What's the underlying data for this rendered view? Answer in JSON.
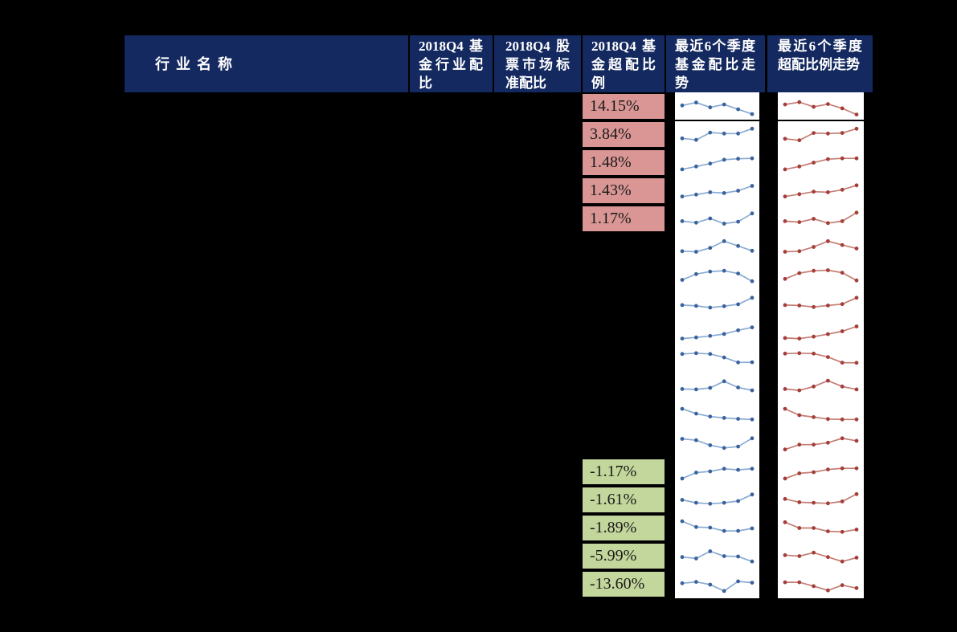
{
  "colors": {
    "background": "#000000",
    "header_bg": "#14295f",
    "header_text": "#ffffff",
    "overweight_positive_fill": "#d99694",
    "overweight_negative_fill": "#c3d69b",
    "fund_trend_line": "#8aabd3",
    "fund_trend_marker": "#3a639c",
    "over_trend_line": "#c47d75",
    "over_trend_marker": "#a43e38",
    "cell_text": "#1a1a1a",
    "sparkline_bg": "#ffffff"
  },
  "chart_data": {
    "type": "table",
    "columns": [
      "行业名称",
      "2018Q4 基金行业配比",
      "2018Q4 股票市场标准配比",
      "2018Q4 基金超配比例",
      "最近6个季度基金配比走势",
      "最近6个季度超配比例走势"
    ],
    "visible_overweight_values": [
      "14.15%",
      "3.84%",
      "1.48%",
      "1.43%",
      "1.17%",
      "-1.17%",
      "-1.61%",
      "-1.89%",
      "-5.99%",
      "-13.60%"
    ],
    "rows": [
      {
        "overweight_pct": "14.15%",
        "fill": "positive",
        "fund_trend": [
          0.55,
          0.7,
          0.45,
          0.6,
          0.35,
          0.1
        ],
        "over_trend": [
          0.6,
          0.72,
          0.48,
          0.62,
          0.4,
          0.08
        ]
      },
      {
        "overweight_pct": "3.84%",
        "fill": "positive",
        "fund_trend": [
          0.3,
          0.22,
          0.6,
          0.55,
          0.55,
          0.8
        ],
        "over_trend": [
          0.28,
          0.2,
          0.58,
          0.55,
          0.58,
          0.8
        ]
      },
      {
        "overweight_pct": "1.48%",
        "fill": "positive",
        "fund_trend": [
          0.15,
          0.3,
          0.45,
          0.65,
          0.7,
          0.72
        ],
        "over_trend": [
          0.15,
          0.3,
          0.5,
          0.68,
          0.72,
          0.72
        ]
      },
      {
        "overweight_pct": "1.43%",
        "fill": "positive",
        "fund_trend": [
          0.2,
          0.3,
          0.42,
          0.38,
          0.5,
          0.75
        ],
        "over_trend": [
          0.2,
          0.32,
          0.45,
          0.42,
          0.55,
          0.78
        ]
      },
      {
        "overweight_pct": "1.17%",
        "fill": "positive",
        "fund_trend": [
          0.38,
          0.3,
          0.52,
          0.25,
          0.35,
          0.78
        ],
        "over_trend": [
          0.38,
          0.33,
          0.5,
          0.28,
          0.38,
          0.82
        ]
      },
      {
        "overweight_pct": "",
        "fill": "none",
        "fund_trend": [
          0.28,
          0.25,
          0.45,
          0.8,
          0.55,
          0.3
        ],
        "over_trend": [
          0.25,
          0.28,
          0.5,
          0.8,
          0.6,
          0.42
        ]
      },
      {
        "overweight_pct": "",
        "fill": "none",
        "fund_trend": [
          0.25,
          0.55,
          0.68,
          0.72,
          0.58,
          0.18
        ],
        "over_trend": [
          0.3,
          0.6,
          0.72,
          0.75,
          0.62,
          0.22
        ]
      },
      {
        "overweight_pct": "",
        "fill": "none",
        "fund_trend": [
          0.4,
          0.36,
          0.27,
          0.34,
          0.44,
          0.78
        ],
        "over_trend": [
          0.4,
          0.38,
          0.3,
          0.38,
          0.45,
          0.78
        ]
      },
      {
        "overweight_pct": "",
        "fill": "none",
        "fund_trend": [
          0.12,
          0.18,
          0.26,
          0.36,
          0.55,
          0.7
        ],
        "over_trend": [
          0.15,
          0.12,
          0.22,
          0.35,
          0.5,
          0.75
        ]
      },
      {
        "overweight_pct": "",
        "fill": "none",
        "fund_trend": [
          0.78,
          0.82,
          0.78,
          0.6,
          0.34,
          0.35
        ],
        "over_trend": [
          0.8,
          0.82,
          0.8,
          0.62,
          0.33,
          0.32
        ]
      },
      {
        "overweight_pct": "",
        "fill": "none",
        "fund_trend": [
          0.42,
          0.4,
          0.48,
          0.82,
          0.5,
          0.35
        ],
        "over_trend": [
          0.42,
          0.35,
          0.55,
          0.85,
          0.55,
          0.4
        ]
      },
      {
        "overweight_pct": "",
        "fill": "none",
        "fund_trend": [
          0.85,
          0.6,
          0.45,
          0.38,
          0.33,
          0.3
        ],
        "over_trend": [
          0.85,
          0.52,
          0.42,
          0.32,
          0.3,
          0.3
        ]
      },
      {
        "overweight_pct": "",
        "fill": "none",
        "fund_trend": [
          0.75,
          0.68,
          0.42,
          0.28,
          0.35,
          0.78
        ],
        "over_trend": [
          0.2,
          0.45,
          0.45,
          0.55,
          0.78,
          0.65
        ]
      },
      {
        "overweight_pct": "-1.17%",
        "fill": "negative",
        "fund_trend": [
          0.15,
          0.46,
          0.52,
          0.66,
          0.6,
          0.66
        ],
        "over_trend": [
          0.15,
          0.42,
          0.48,
          0.62,
          0.68,
          0.68
        ]
      },
      {
        "overweight_pct": "-1.61%",
        "fill": "negative",
        "fund_trend": [
          0.5,
          0.35,
          0.3,
          0.35,
          0.44,
          0.78
        ],
        "over_trend": [
          0.55,
          0.38,
          0.35,
          0.32,
          0.42,
          0.8
        ]
      },
      {
        "overweight_pct": "-1.89%",
        "fill": "negative",
        "fund_trend": [
          0.85,
          0.55,
          0.52,
          0.35,
          0.35,
          0.48
        ],
        "over_trend": [
          0.8,
          0.5,
          0.5,
          0.33,
          0.3,
          0.42
        ]
      },
      {
        "overweight_pct": "-5.99%",
        "fill": "negative",
        "fund_trend": [
          0.45,
          0.38,
          0.75,
          0.5,
          0.48,
          0.22
        ],
        "over_trend": [
          0.55,
          0.5,
          0.68,
          0.45,
          0.22,
          0.42
        ]
      },
      {
        "overweight_pct": "-13.60%",
        "fill": "negative",
        "fund_trend": [
          0.55,
          0.62,
          0.48,
          0.15,
          0.65,
          0.58
        ],
        "over_trend": [
          0.6,
          0.6,
          0.4,
          0.18,
          0.45,
          0.3
        ]
      }
    ]
  }
}
